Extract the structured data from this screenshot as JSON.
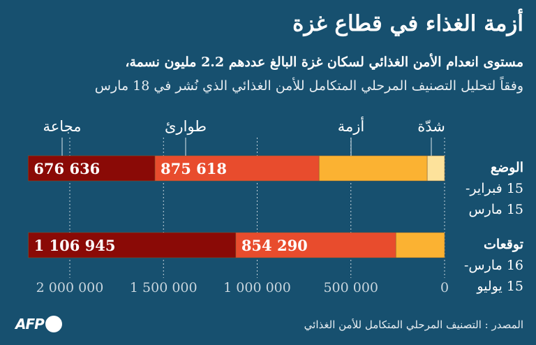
{
  "title": "أزمة الغذاء في قطاع غزة",
  "subtitle_1": "مستوى انعدام الأمن الغذائي لسكان غزة البالغ عددهم 2.2 مليون نسمة،",
  "subtitle_2": "وفقاً لتحليل التصنيف المرحلي المتكامل للأمن الغذائي الذي نُشر في 18 مارس",
  "rows": [
    {
      "heading": "الوضع",
      "line1": "15 فبراير-",
      "line2": "15 مارس"
    },
    {
      "heading": "توقعات",
      "line1": "16 مارس-",
      "line2": "15 يوليو"
    }
  ],
  "source": "المصدر : التصنيف المرحلي المتكامل للأمن الغذائي",
  "logo_text": "AFP",
  "chart_data": {
    "type": "bar",
    "orientation": "horizontal-stacked",
    "x_direction": "right-to-left",
    "categories": [
      "الوضع 15 فبراير- 15 مارس",
      "توقعات 16 مارس- 15 يوليو"
    ],
    "series": [
      {
        "name": "شدّة",
        "color": "#fde29b",
        "values": [
          93000,
          0
        ]
      },
      {
        "name": "أزمة",
        "color": "#fbb232",
        "values": [
          577000,
          260000
        ]
      },
      {
        "name": "طوارئ",
        "color": "#e84c2d",
        "values": [
          875618,
          854290
        ],
        "labels": [
          "875 618",
          "854 290"
        ]
      },
      {
        "name": "مجاعة",
        "color": "#8a0a06",
        "values": [
          676636,
          1106945
        ],
        "labels": [
          "676 636",
          "1 106 945"
        ]
      }
    ],
    "xlim": [
      0,
      2200000
    ],
    "xticks": [
      0,
      500000,
      1000000,
      1500000,
      2000000
    ],
    "xtick_labels": [
      "0",
      "500 000",
      "1 000 000",
      "1 500 000",
      "2 000 000"
    ],
    "grid": "vertical dashed"
  }
}
